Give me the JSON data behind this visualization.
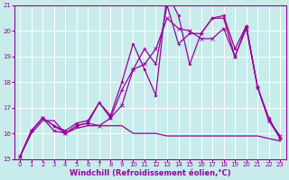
{
  "title": "",
  "xlabel": "Windchill (Refroidissement éolien,°C)",
  "xlim": [
    -0.5,
    23.5
  ],
  "ylim": [
    15,
    21
  ],
  "yticks": [
    15,
    16,
    17,
    18,
    19,
    20,
    21
  ],
  "xticks": [
    0,
    1,
    2,
    3,
    4,
    5,
    6,
    7,
    8,
    9,
    10,
    11,
    12,
    13,
    14,
    15,
    16,
    17,
    18,
    19,
    20,
    21,
    22,
    23
  ],
  "background_color": "#c8ecec",
  "grid_color": "#ffffff",
  "line_color": "#990099",
  "line1_y": [
    15.1,
    16.0,
    16.5,
    16.5,
    16.0,
    16.2,
    16.3,
    16.3,
    16.3,
    16.3,
    16.0,
    16.0,
    16.0,
    15.9,
    15.9,
    15.9,
    15.9,
    15.9,
    15.9,
    15.9,
    15.9,
    15.9,
    15.8,
    15.7
  ],
  "line2_y": [
    15.1,
    16.1,
    16.6,
    16.1,
    16.0,
    16.3,
    16.4,
    16.3,
    16.6,
    17.1,
    18.5,
    18.7,
    19.3,
    20.5,
    20.1,
    20.0,
    19.7,
    19.7,
    20.1,
    19.0,
    20.1,
    17.8,
    16.5,
    15.9
  ],
  "line3_y": [
    15.1,
    16.1,
    16.6,
    16.3,
    16.0,
    16.3,
    16.4,
    17.2,
    16.6,
    17.7,
    18.5,
    19.3,
    18.7,
    21.0,
    19.5,
    19.9,
    19.9,
    20.5,
    20.5,
    19.0,
    20.2,
    17.8,
    16.5,
    15.8
  ],
  "line4_y": [
    15.1,
    16.1,
    16.6,
    16.3,
    16.1,
    16.4,
    16.5,
    17.2,
    16.7,
    18.0,
    19.5,
    18.5,
    17.5,
    21.5,
    20.6,
    18.7,
    19.9,
    20.5,
    20.6,
    19.3,
    20.2,
    17.8,
    16.6,
    15.8
  ],
  "tick_fontsize": 5.0,
  "xlabel_fontsize": 6.0
}
